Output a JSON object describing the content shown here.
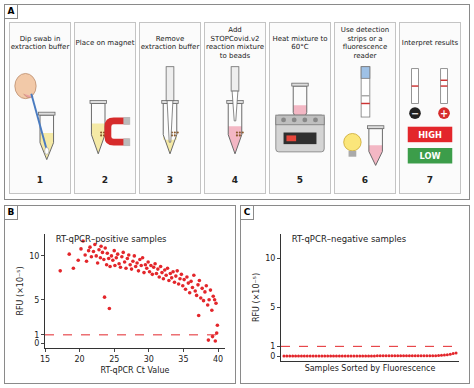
{
  "figure": {
    "panel_a": {
      "label": "A",
      "steps": [
        {
          "number": 1,
          "text": "Dip swab in extraction buffer"
        },
        {
          "number": 2,
          "text": "Place on magnet"
        },
        {
          "number": 3,
          "text": "Remove extraction buffer"
        },
        {
          "number": 4,
          "text": "Add STOPCovid.v2 reaction mixture to beads"
        },
        {
          "number": 5,
          "text": "Heat mixture to 60°C"
        },
        {
          "number": 6,
          "text": "Use detection strips or a fluorescence reader"
        },
        {
          "number": 7,
          "text": "Interpret results"
        }
      ],
      "results": {
        "negative": "−",
        "positive": "+",
        "high": "HIGH",
        "low": "LOW"
      }
    }
  },
  "chart_data": [
    {
      "label": "B",
      "type": "scatter",
      "title": "RT-qPCR–positive samples",
      "x_label": "RT-qPCR Ct Value",
      "y_label": "RFU (×10⁻⁵)",
      "xlim": [
        15,
        41
      ],
      "xticks": [
        15,
        20,
        25,
        30,
        35,
        40
      ],
      "ylim": [
        -0.5,
        12.5
      ],
      "yticks": [
        0,
        1,
        5,
        10
      ],
      "grid": false,
      "series": [
        {
          "type": "scatter",
          "marker": "circle",
          "color": "#e3262b",
          "x": [
            17.2,
            18.5,
            19.1,
            19.8,
            20.2,
            20.5,
            20.8,
            21.0,
            21.3,
            21.5,
            21.7,
            22.0,
            22.2,
            22.4,
            22.6,
            22.8,
            23.0,
            23.1,
            23.3,
            23.5,
            23.7,
            23.9,
            24.0,
            24.2,
            24.4,
            24.6,
            24.8,
            25.0,
            25.1,
            25.3,
            25.5,
            25.7,
            25.9,
            26.1,
            26.3,
            26.5,
            26.7,
            26.9,
            27.1,
            27.3,
            27.5,
            27.7,
            27.9,
            28.1,
            28.3,
            28.5,
            28.7,
            28.9,
            29.1,
            29.3,
            29.5,
            29.7,
            29.9,
            30.1,
            30.3,
            30.5,
            30.7,
            30.9,
            31.1,
            31.3,
            31.5,
            31.7,
            31.9,
            32.1,
            32.3,
            32.5,
            32.7,
            32.9,
            33.1,
            33.3,
            33.5,
            33.7,
            33.9,
            34.1,
            34.3,
            34.5,
            34.7,
            34.9,
            35.1,
            35.3,
            35.5,
            35.7,
            35.9,
            36.1,
            36.3,
            36.5,
            36.7,
            36.9,
            37.1,
            37.3,
            37.5,
            37.7,
            37.9,
            38.1,
            38.3,
            38.5,
            38.7,
            38.9,
            39.1,
            39.3,
            39.5,
            39.7,
            39.9,
            24.3,
            23.6,
            38.6,
            39.2,
            39.6,
            39.8,
            37.2
          ],
          "values": [
            8.3,
            10.2,
            8.6,
            9.5,
            10.8,
            11.7,
            10.1,
            9.4,
            10.6,
            11.0,
            9.9,
            10.5,
            11.3,
            10.0,
            9.2,
            10.7,
            9.8,
            11.1,
            10.4,
            9.6,
            10.9,
            9.0,
            10.3,
            9.7,
            8.8,
            10.0,
            9.5,
            10.6,
            8.9,
            9.8,
            10.2,
            9.1,
            8.7,
            9.9,
            10.4,
            9.3,
            8.6,
            9.7,
            10.1,
            9.0,
            8.5,
            9.4,
            10.0,
            8.8,
            9.2,
            8.3,
            9.6,
            8.9,
            9.8,
            8.1,
            9.0,
            8.6,
            9.3,
            8.2,
            8.9,
            7.9,
            8.7,
            9.1,
            8.0,
            8.5,
            7.6,
            8.8,
            8.1,
            7.4,
            8.4,
            7.8,
            8.6,
            7.2,
            8.0,
            7.5,
            8.2,
            7.0,
            7.7,
            8.3,
            6.8,
            7.4,
            7.9,
            6.6,
            7.3,
            6.2,
            7.6,
            6.9,
            5.8,
            7.1,
            6.4,
            7.8,
            6.0,
            5.5,
            6.7,
            7.2,
            5.2,
            6.3,
            4.9,
            5.9,
            6.6,
            4.4,
            5.0,
            6.1,
            3.8,
            5.4,
            5.0,
            4.6,
            2.1,
            4.0,
            5.3,
            0.4,
            0.8,
            0.3,
            1.2,
            3.2
          ]
        },
        {
          "type": "line",
          "line_style": "dash",
          "color": "#e3262b",
          "x": [
            15,
            41
          ],
          "values": [
            1,
            1
          ]
        }
      ]
    },
    {
      "label": "C",
      "type": "scatter",
      "title": "RT-qPCR–negative samples",
      "x_label": "Samples Sorted by Fluorescence",
      "y_label": "RFU (×10⁻⁵)",
      "xlim": [
        0,
        61
      ],
      "xticks": [],
      "ylim": [
        -0.5,
        12.5
      ],
      "yticks": [
        0,
        1,
        5,
        10
      ],
      "grid": false,
      "tick_labels": "y",
      "series": [
        {
          "type": "scatter",
          "marker": "circle",
          "color": "#e3262b",
          "x": [
            1,
            2,
            3,
            4,
            5,
            6,
            7,
            8,
            9,
            10,
            11,
            12,
            13,
            14,
            15,
            16,
            17,
            18,
            19,
            20,
            21,
            22,
            23,
            24,
            25,
            26,
            27,
            28,
            29,
            30,
            31,
            32,
            33,
            34,
            35,
            36,
            37,
            38,
            39,
            40,
            41,
            42,
            43,
            44,
            45,
            46,
            47,
            48,
            49,
            50,
            51,
            52,
            53,
            54,
            55,
            56,
            57,
            58,
            59,
            60
          ],
          "values": [
            0.01,
            0.01,
            0.01,
            0.01,
            0.01,
            0.01,
            0.01,
            0.01,
            0.01,
            0.01,
            0.01,
            0.02,
            0.02,
            0.02,
            0.02,
            0.02,
            0.02,
            0.02,
            0.02,
            0.02,
            0.02,
            0.02,
            0.02,
            0.02,
            0.02,
            0.02,
            0.02,
            0.02,
            0.02,
            0.02,
            0.02,
            0.02,
            0.03,
            0.03,
            0.03,
            0.03,
            0.03,
            0.03,
            0.03,
            0.03,
            0.03,
            0.03,
            0.03,
            0.03,
            0.03,
            0.03,
            0.04,
            0.04,
            0.04,
            0.04,
            0.04,
            0.05,
            0.05,
            0.06,
            0.08,
            0.11,
            0.15,
            0.2,
            0.26,
            0.33
          ]
        },
        {
          "type": "line",
          "line_style": "dash",
          "color": "#e3262b",
          "x": [
            0,
            61
          ],
          "values": [
            1,
            1
          ]
        }
      ]
    }
  ]
}
